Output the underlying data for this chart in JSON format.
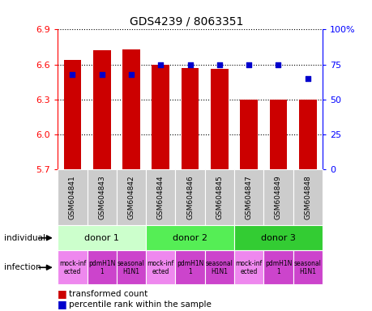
{
  "title": "GDS4239 / 8063351",
  "samples": [
    "GSM604841",
    "GSM604843",
    "GSM604842",
    "GSM604844",
    "GSM604846",
    "GSM604845",
    "GSM604847",
    "GSM604849",
    "GSM604848"
  ],
  "bar_values": [
    6.64,
    6.72,
    6.73,
    6.6,
    6.57,
    6.56,
    6.3,
    6.3,
    6.3
  ],
  "bar_bottom": 5.7,
  "dot_values": [
    68,
    68,
    68,
    75,
    75,
    75,
    75,
    75,
    65
  ],
  "ylim_left": [
    5.7,
    6.9
  ],
  "ylim_right": [
    0,
    100
  ],
  "yticks_left": [
    5.7,
    6.0,
    6.3,
    6.6,
    6.9
  ],
  "yticks_right": [
    0,
    25,
    50,
    75,
    100
  ],
  "ytick_labels_right": [
    "0",
    "25",
    "50",
    "75",
    "100%"
  ],
  "bar_color": "#cc0000",
  "dot_color": "#0000cc",
  "donors": [
    {
      "label": "donor 1",
      "start": 0,
      "end": 3,
      "color": "#ccffcc"
    },
    {
      "label": "donor 2",
      "start": 3,
      "end": 6,
      "color": "#55ee55"
    },
    {
      "label": "donor 3",
      "start": 6,
      "end": 9,
      "color": "#33cc33"
    }
  ],
  "infection_data": [
    {
      "label": "mock-inf\nected",
      "color": "#ee88ee"
    },
    {
      "label": "pdmH1N\n1",
      "color": "#cc44cc"
    },
    {
      "label": "seasonal\nH1N1",
      "color": "#cc44cc"
    },
    {
      "label": "mock-inf\nected",
      "color": "#ee88ee"
    },
    {
      "label": "pdmH1N\n1",
      "color": "#cc44cc"
    },
    {
      "label": "seasonal\nH1N1",
      "color": "#cc44cc"
    },
    {
      "label": "mock-inf\nected",
      "color": "#ee88ee"
    },
    {
      "label": "pdmH1N\n1",
      "color": "#cc44cc"
    },
    {
      "label": "seasonal\nH1N1",
      "color": "#cc44cc"
    }
  ],
  "legend_bar_label": "transformed count",
  "legend_dot_label": "percentile rank within the sample",
  "sample_box_color": "#cccccc",
  "individual_label": "individual",
  "infection_label": "infection",
  "grid_yticks": [
    6.0,
    6.3,
    6.6,
    6.9
  ]
}
